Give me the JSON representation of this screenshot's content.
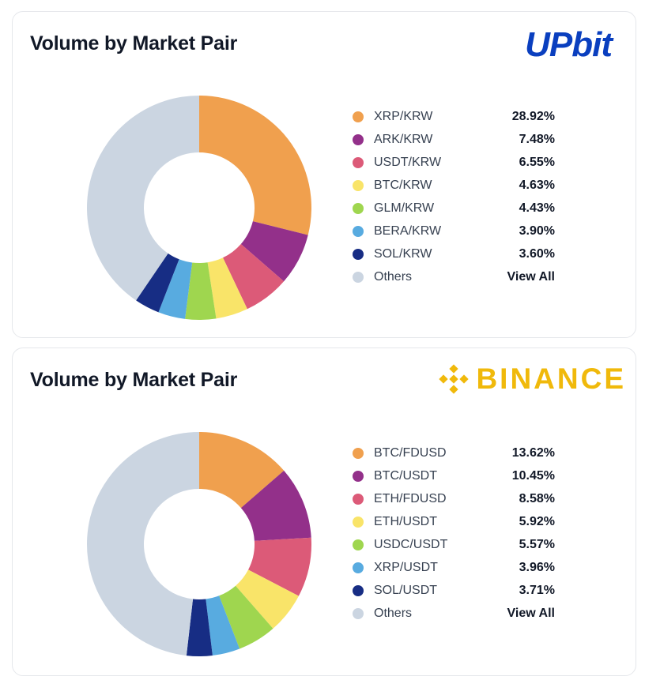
{
  "cards": [
    {
      "title": "Volume by Market Pair",
      "logo_text": "UPbit",
      "others_label": "Others",
      "view_all_label": "View All",
      "colors": [
        "#f0a04e",
        "#93308a",
        "#dc5a78",
        "#f9e469",
        "#9fd64f",
        "#58abe0",
        "#172d84"
      ],
      "others_color": "#cbd5e1",
      "legend": [
        {
          "label": "XRP/KRW",
          "value": "28.92%"
        },
        {
          "label": "ARK/KRW",
          "value": "7.48%"
        },
        {
          "label": "USDT/KRW",
          "value": "6.55%"
        },
        {
          "label": "BTC/KRW",
          "value": "4.63%"
        },
        {
          "label": "GLM/KRW",
          "value": "4.43%"
        },
        {
          "label": "BERA/KRW",
          "value": "3.90%"
        },
        {
          "label": "SOL/KRW",
          "value": "3.60%"
        }
      ]
    },
    {
      "title": "Volume by Market Pair",
      "logo_text": "BINANCE",
      "others_label": "Others",
      "view_all_label": "View All",
      "colors": [
        "#f0a04e",
        "#93308a",
        "#dc5a78",
        "#f9e469",
        "#9fd64f",
        "#58abe0",
        "#172d84"
      ],
      "others_color": "#cbd5e1",
      "legend": [
        {
          "label": "BTC/FDUSD",
          "value": "13.62%"
        },
        {
          "label": "BTC/USDT",
          "value": "10.45%"
        },
        {
          "label": "ETH/FDUSD",
          "value": "8.58%"
        },
        {
          "label": "ETH/USDT",
          "value": "5.92%"
        },
        {
          "label": "USDC/USDT",
          "value": "5.57%"
        },
        {
          "label": "XRP/USDT",
          "value": "3.96%"
        },
        {
          "label": "SOL/USDT",
          "value": "3.71%"
        }
      ]
    }
  ],
  "chart_data": [
    {
      "type": "pie",
      "title": "Volume by Market Pair",
      "categories": [
        "XRP/KRW",
        "ARK/KRW",
        "USDT/KRW",
        "BTC/KRW",
        "GLM/KRW",
        "BERA/KRW",
        "SOL/KRW",
        "Others"
      ],
      "values": [
        28.92,
        7.48,
        6.55,
        4.63,
        4.43,
        3.9,
        3.6,
        40.49
      ],
      "legend_position": "right"
    },
    {
      "type": "pie",
      "title": "Volume by Market Pair",
      "categories": [
        "BTC/FDUSD",
        "BTC/USDT",
        "ETH/FDUSD",
        "ETH/USDT",
        "USDC/USDT",
        "XRP/USDT",
        "SOL/USDT",
        "Others"
      ],
      "values": [
        13.62,
        10.45,
        8.58,
        5.92,
        5.57,
        3.96,
        3.71,
        48.19
      ],
      "legend_position": "right"
    }
  ]
}
